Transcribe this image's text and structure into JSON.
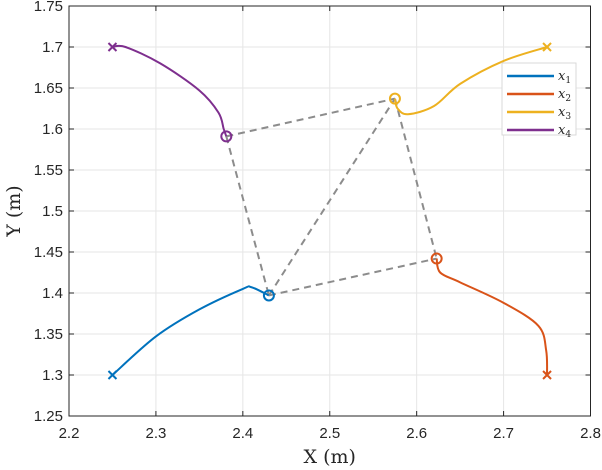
{
  "chart_data": {
    "type": "line",
    "title": "",
    "xlabel": "X (m)",
    "ylabel": "Y (m)",
    "xlim": [
      2.2,
      2.8
    ],
    "ylim": [
      1.25,
      1.75
    ],
    "xticks": [
      "2.2",
      "2.3",
      "2.4",
      "2.5",
      "2.6",
      "2.7",
      "2.8"
    ],
    "yticks": [
      "1.25",
      "1.3",
      "1.35",
      "1.4",
      "1.45",
      "1.5",
      "1.55",
      "1.6",
      "1.65",
      "1.7",
      "1.75"
    ],
    "grid": true,
    "legend_position": "upper right",
    "series": [
      {
        "name": "x1",
        "color": "#0072BD",
        "start": [
          2.25,
          1.3
        ],
        "end": [
          2.43,
          1.397
        ],
        "points": [
          [
            2.25,
            1.3
          ],
          [
            2.3,
            1.347
          ],
          [
            2.35,
            1.38
          ],
          [
            2.4,
            1.405
          ],
          [
            2.41,
            1.407
          ],
          [
            2.43,
            1.397
          ]
        ]
      },
      {
        "name": "x2",
        "color": "#D95319",
        "start": [
          2.75,
          1.3
        ],
        "end": [
          2.623,
          1.442
        ],
        "points": [
          [
            2.75,
            1.3
          ],
          [
            2.749,
            1.33
          ],
          [
            2.74,
            1.36
          ],
          [
            2.7,
            1.388
          ],
          [
            2.65,
            1.413
          ],
          [
            2.627,
            1.425
          ],
          [
            2.623,
            1.442
          ]
        ]
      },
      {
        "name": "x3",
        "color": "#EDB120",
        "start": [
          2.75,
          1.7
        ],
        "end": [
          2.575,
          1.637
        ],
        "points": [
          [
            2.75,
            1.7
          ],
          [
            2.7,
            1.683
          ],
          [
            2.65,
            1.655
          ],
          [
            2.62,
            1.628
          ],
          [
            2.59,
            1.618
          ],
          [
            2.578,
            1.625
          ],
          [
            2.575,
            1.637
          ]
        ]
      },
      {
        "name": "x4",
        "color": "#7E2F8E",
        "start": [
          2.25,
          1.7
        ],
        "end": [
          2.381,
          1.591
        ],
        "points": [
          [
            2.25,
            1.7
          ],
          [
            2.265,
            1.7
          ],
          [
            2.305,
            1.68
          ],
          [
            2.35,
            1.647
          ],
          [
            2.372,
            1.62
          ],
          [
            2.378,
            1.6
          ],
          [
            2.381,
            1.591
          ]
        ]
      }
    ],
    "connections": [
      [
        [
          2.381,
          1.591
        ],
        [
          2.575,
          1.637
        ]
      ],
      [
        [
          2.381,
          1.591
        ],
        [
          2.43,
          1.397
        ]
      ],
      [
        [
          2.43,
          1.397
        ],
        [
          2.575,
          1.637
        ]
      ],
      [
        [
          2.43,
          1.397
        ],
        [
          2.623,
          1.442
        ]
      ],
      [
        [
          2.575,
          1.637
        ],
        [
          2.623,
          1.442
        ]
      ]
    ]
  },
  "legend": [
    {
      "label": "x",
      "sub": "1",
      "color": "#0072BD"
    },
    {
      "label": "x",
      "sub": "2",
      "color": "#D95319"
    },
    {
      "label": "x",
      "sub": "3",
      "color": "#EDB120"
    },
    {
      "label": "x",
      "sub": "4",
      "color": "#7E2F8E"
    }
  ]
}
